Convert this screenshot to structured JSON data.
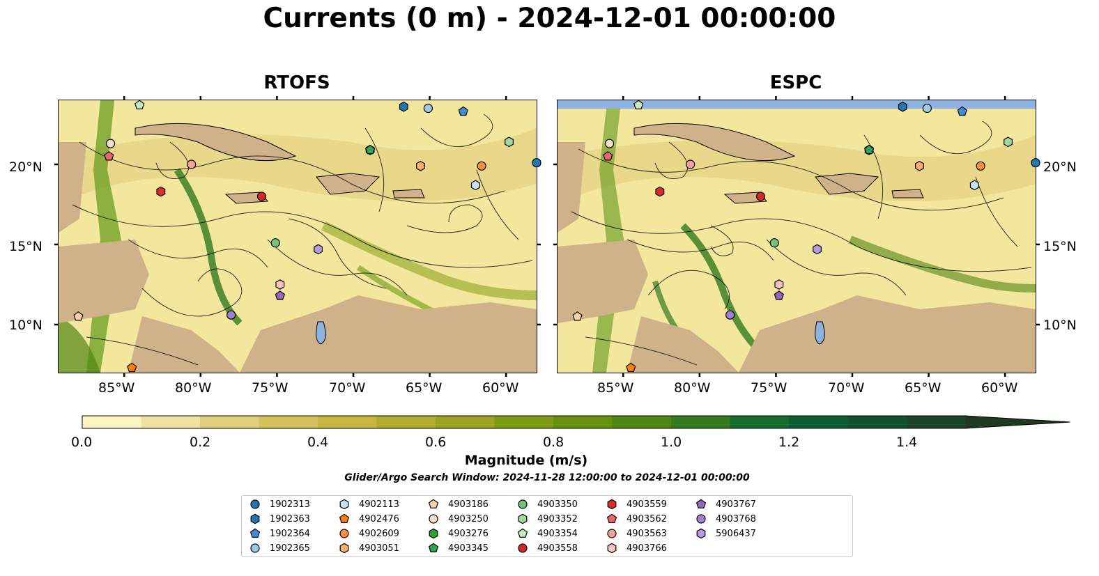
{
  "figure": {
    "title": "Currents (0 m) - 2024-12-01 00:00:00",
    "panels": [
      {
        "id": "rtofs",
        "title": "RTOFS"
      },
      {
        "id": "espc",
        "title": "ESPC"
      }
    ],
    "lon_ticks": [
      "85°W",
      "80°W",
      "75°W",
      "70°W",
      "65°W",
      "60°W"
    ],
    "lat_ticks": [
      "20°N",
      "15°N",
      "10°N"
    ],
    "extent": {
      "lon_min": -89.3,
      "lon_max": -58.0,
      "lat_min": 7.0,
      "lat_max": 24.0
    },
    "colorbar": {
      "label": "Magnitude (m/s)",
      "ticks": [
        "0.0",
        "0.2",
        "0.4",
        "0.6",
        "0.8",
        "1.0",
        "1.2",
        "1.4"
      ],
      "range": [
        0,
        1.5
      ],
      "step": 0.1,
      "extend": "max",
      "colors": [
        "#fdf6c3",
        "#f0e2a0",
        "#e2cf7d",
        "#d7c15a",
        "#c9b542",
        "#b3ab30",
        "#9aa322",
        "#7f9a15",
        "#67900f",
        "#4e8614",
        "#337b1d",
        "#156d2c",
        "#0c5f30",
        "#11522e",
        "#1a4527",
        "#1f3a20"
      ]
    },
    "search_window": "Glider/Argo Search Window: 2024-11-28 12:00:00 to 2024-12-01 00:00:00",
    "legend": [
      {
        "id": "1902313",
        "marker": "circle",
        "color": "#1f77b4"
      },
      {
        "id": "1902363",
        "marker": "hexagon",
        "color": "#1f77b4"
      },
      {
        "id": "1902364",
        "marker": "pentagon",
        "color": "#3f8fd6"
      },
      {
        "id": "1902365",
        "marker": "circle",
        "color": "#9ecae1"
      },
      {
        "id": "4902113",
        "marker": "hexagon",
        "color": "#c6e3f5"
      },
      {
        "id": "4902476",
        "marker": "pentagon",
        "color": "#ff7f0e"
      },
      {
        "id": "4902609",
        "marker": "circle",
        "color": "#fd8d3c"
      },
      {
        "id": "4903051",
        "marker": "hexagon",
        "color": "#fdae6b"
      },
      {
        "id": "4903186",
        "marker": "pentagon",
        "color": "#fdd0a2"
      },
      {
        "id": "4903250",
        "marker": "circle",
        "color": "#fde0c5"
      },
      {
        "id": "4903276",
        "marker": "hexagon",
        "color": "#2ca02c"
      },
      {
        "id": "4903345",
        "marker": "pentagon",
        "color": "#31a354"
      },
      {
        "id": "4903350",
        "marker": "circle",
        "color": "#74c476"
      },
      {
        "id": "4903352",
        "marker": "hexagon",
        "color": "#a1d99b"
      },
      {
        "id": "4903354",
        "marker": "pentagon",
        "color": "#c7e9c0"
      },
      {
        "id": "4903558",
        "marker": "circle",
        "color": "#d62728"
      },
      {
        "id": "4903559",
        "marker": "hexagon",
        "color": "#de2d26"
      },
      {
        "id": "4903562",
        "marker": "pentagon",
        "color": "#f0646b"
      },
      {
        "id": "4903563",
        "marker": "circle",
        "color": "#f4a09b"
      },
      {
        "id": "4903766",
        "marker": "hexagon",
        "color": "#f7c3bf"
      },
      {
        "id": "4903767",
        "marker": "pentagon",
        "color": "#9467bd"
      },
      {
        "id": "4903768",
        "marker": "circle",
        "color": "#a07fd3"
      },
      {
        "id": "5906437",
        "marker": "hexagon",
        "color": "#b79ae0"
      }
    ],
    "floats": [
      {
        "id": "1902313",
        "lon": -58.0,
        "lat": 20.1
      },
      {
        "id": "1902363",
        "lon": -66.7,
        "lat": 23.6
      },
      {
        "id": "1902364",
        "lon": -62.8,
        "lat": 23.3
      },
      {
        "id": "1902365",
        "lon": -65.1,
        "lat": 23.5
      },
      {
        "id": "4902113",
        "lon": -62.0,
        "lat": 18.7
      },
      {
        "id": "4902476",
        "lon": -84.5,
        "lat": 7.3
      },
      {
        "id": "4902609",
        "lon": -61.6,
        "lat": 19.9
      },
      {
        "id": "4903051",
        "lon": -65.6,
        "lat": 19.9
      },
      {
        "id": "4903186",
        "lon": -88.0,
        "lat": 10.5
      },
      {
        "id": "4903250",
        "lon": -85.9,
        "lat": 21.3
      },
      {
        "id": "4903276",
        "lon": -68.9,
        "lat": 20.9
      },
      {
        "id": "4903345",
        "lon": -68.9,
        "lat": 20.9
      },
      {
        "id": "4903350",
        "lon": -75.1,
        "lat": 15.1
      },
      {
        "id": "4903352",
        "lon": -59.8,
        "lat": 21.4
      },
      {
        "id": "4903354",
        "lon": -84.0,
        "lat": 23.7
      },
      {
        "id": "4903558",
        "lon": -76.0,
        "lat": 18.0
      },
      {
        "id": "4903559",
        "lon": -82.6,
        "lat": 18.3
      },
      {
        "id": "4903562",
        "lon": -86.0,
        "lat": 20.5
      },
      {
        "id": "4903563",
        "lon": -80.6,
        "lat": 20.0
      },
      {
        "id": "4903766",
        "lon": -74.8,
        "lat": 12.5
      },
      {
        "id": "4903767",
        "lon": -74.8,
        "lat": 11.8
      },
      {
        "id": "4903768",
        "lon": -78.0,
        "lat": 10.6
      },
      {
        "id": "5906437",
        "lon": -72.3,
        "lat": 14.7
      }
    ]
  }
}
